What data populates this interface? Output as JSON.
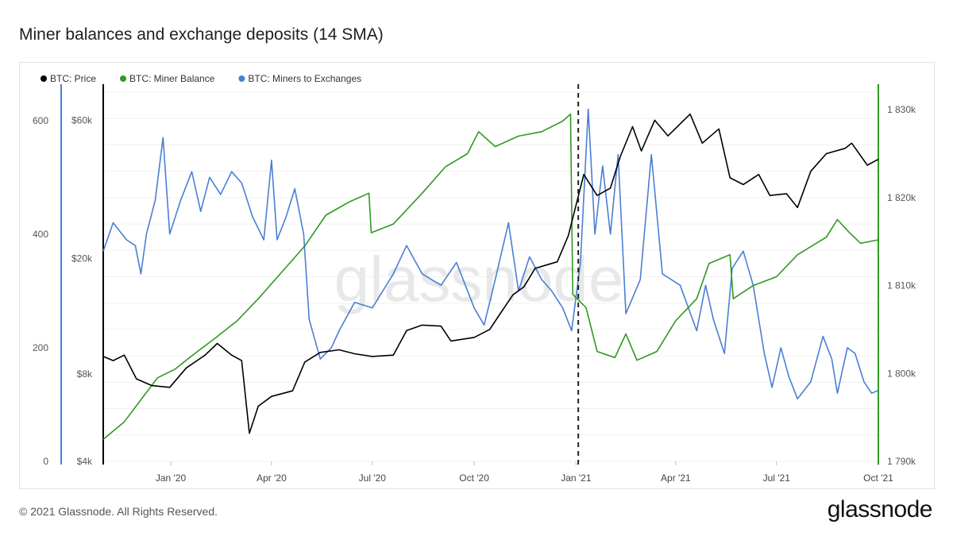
{
  "page": {
    "title": "Miner balances and exchange deposits (14 SMA)",
    "footer": "© 2021 Glassnode. All Rights Reserved.",
    "logo_text": "glassnode",
    "watermark": "glassnode"
  },
  "chart_data": {
    "type": "line",
    "title": "Miner balances and exchange deposits (14 SMA)",
    "grid": true,
    "legend_position": "top-left",
    "x_range": [
      "2019-11-01",
      "2021-10-01"
    ],
    "x_ticks": [
      "Jan '20",
      "Apr '20",
      "Jul '20",
      "Oct '20",
      "Jan '21",
      "Apr '21",
      "Jul '21",
      "Oct '21"
    ],
    "axes": {
      "left_outer": {
        "series": "BTC: Miners to Exchanges",
        "range": [
          0,
          650
        ],
        "ticks": [
          "0",
          "200",
          "400",
          "600"
        ],
        "tick_values": [
          0,
          200,
          400,
          600
        ],
        "color": "#4a7fd4"
      },
      "left_inner": {
        "series": "BTC: Price",
        "scale": "log",
        "range": [
          4000,
          75000
        ],
        "ticks": [
          "$4k",
          "$8k",
          "$20k",
          "$60k"
        ],
        "tick_values": [
          4000,
          8000,
          20000,
          60000
        ],
        "color": "#000000"
      },
      "right": {
        "series": "BTC: Miner Balance",
        "range": [
          1790000,
          1832000
        ],
        "ticks": [
          "1 790k",
          "1 800k",
          "1 810k",
          "1 820k",
          "1 830k"
        ],
        "tick_values": [
          1790000,
          1800000,
          1810000,
          1820000,
          1830000
        ],
        "color": "#2e9a1e"
      }
    },
    "annotations": [
      {
        "type": "vertical-dashed-line",
        "x": "2021-01-03"
      }
    ],
    "series": [
      {
        "name": "BTC: Price",
        "color": "#000000",
        "axis": "left_inner",
        "points": [
          [
            "2019-11-01",
            9200
          ],
          [
            "2019-11-10",
            8900
          ],
          [
            "2019-11-20",
            9300
          ],
          [
            "2019-12-01",
            7700
          ],
          [
            "2019-12-15",
            7300
          ],
          [
            "2019-12-31",
            7200
          ],
          [
            "2020-01-15",
            8400
          ],
          [
            "2020-02-01",
            9300
          ],
          [
            "2020-02-12",
            10200
          ],
          [
            "2020-02-25",
            9300
          ],
          [
            "2020-03-05",
            8900
          ],
          [
            "2020-03-12",
            5000
          ],
          [
            "2020-03-20",
            6200
          ],
          [
            "2020-04-01",
            6700
          ],
          [
            "2020-04-20",
            7000
          ],
          [
            "2020-05-01",
            8800
          ],
          [
            "2020-05-15",
            9500
          ],
          [
            "2020-06-01",
            9700
          ],
          [
            "2020-06-15",
            9400
          ],
          [
            "2020-07-01",
            9200
          ],
          [
            "2020-07-20",
            9300
          ],
          [
            "2020-08-01",
            11300
          ],
          [
            "2020-08-15",
            11800
          ],
          [
            "2020-09-01",
            11700
          ],
          [
            "2020-09-10",
            10400
          ],
          [
            "2020-10-01",
            10700
          ],
          [
            "2020-10-15",
            11400
          ],
          [
            "2020-10-25",
            13000
          ],
          [
            "2020-11-05",
            15000
          ],
          [
            "2020-11-15",
            16000
          ],
          [
            "2020-11-25",
            18500
          ],
          [
            "2020-12-05",
            19000
          ],
          [
            "2020-12-15",
            19500
          ],
          [
            "2020-12-25",
            24000
          ],
          [
            "2021-01-08",
            39000
          ],
          [
            "2021-01-20",
            33000
          ],
          [
            "2021-02-01",
            35000
          ],
          [
            "2021-02-10",
            45000
          ],
          [
            "2021-02-21",
            57000
          ],
          [
            "2021-03-01",
            47000
          ],
          [
            "2021-03-13",
            60000
          ],
          [
            "2021-03-25",
            53000
          ],
          [
            "2021-04-14",
            63000
          ],
          [
            "2021-04-25",
            50000
          ],
          [
            "2021-05-10",
            56000
          ],
          [
            "2021-05-20",
            38000
          ],
          [
            "2021-06-01",
            36000
          ],
          [
            "2021-06-15",
            39000
          ],
          [
            "2021-06-25",
            33000
          ],
          [
            "2021-07-10",
            33500
          ],
          [
            "2021-07-20",
            30000
          ],
          [
            "2021-08-01",
            40000
          ],
          [
            "2021-08-15",
            46000
          ],
          [
            "2021-09-01",
            48000
          ],
          [
            "2021-09-07",
            50000
          ],
          [
            "2021-09-21",
            42000
          ],
          [
            "2021-10-01",
            44000
          ]
        ]
      },
      {
        "name": "BTC: Miner Balance",
        "color": "#2e9a1e",
        "axis": "right",
        "points": [
          [
            "2019-11-01",
            1792500
          ],
          [
            "2019-11-20",
            1794500
          ],
          [
            "2019-12-05",
            1797000
          ],
          [
            "2019-12-20",
            1799500
          ],
          [
            "2020-01-05",
            1800500
          ],
          [
            "2020-01-20",
            1802000
          ],
          [
            "2020-02-10",
            1804000
          ],
          [
            "2020-03-01",
            1806000
          ],
          [
            "2020-03-20",
            1808500
          ],
          [
            "2020-04-10",
            1811500
          ],
          [
            "2020-05-01",
            1814500
          ],
          [
            "2020-05-20",
            1818000
          ],
          [
            "2020-06-10",
            1819500
          ],
          [
            "2020-06-28",
            1820500
          ],
          [
            "2020-06-30",
            1816000
          ],
          [
            "2020-07-20",
            1817000
          ],
          [
            "2020-08-15",
            1820500
          ],
          [
            "2020-09-05",
            1823500
          ],
          [
            "2020-09-25",
            1825000
          ],
          [
            "2020-10-05",
            1827500
          ],
          [
            "2020-10-20",
            1825800
          ],
          [
            "2020-11-10",
            1827000
          ],
          [
            "2020-12-01",
            1827500
          ],
          [
            "2020-12-20",
            1828700
          ],
          [
            "2020-12-27",
            1829500
          ],
          [
            "2020-12-29",
            1809000
          ],
          [
            "2021-01-10",
            1807500
          ],
          [
            "2021-01-20",
            1802500
          ],
          [
            "2021-02-05",
            1801800
          ],
          [
            "2021-02-15",
            1804500
          ],
          [
            "2021-02-25",
            1801500
          ],
          [
            "2021-03-15",
            1802500
          ],
          [
            "2021-04-01",
            1806000
          ],
          [
            "2021-04-20",
            1808500
          ],
          [
            "2021-05-01",
            1812500
          ],
          [
            "2021-05-20",
            1813500
          ],
          [
            "2021-05-23",
            1808500
          ],
          [
            "2021-06-10",
            1810000
          ],
          [
            "2021-07-01",
            1811000
          ],
          [
            "2021-07-20",
            1813500
          ],
          [
            "2021-08-15",
            1815500
          ],
          [
            "2021-08-25",
            1817500
          ],
          [
            "2021-09-05",
            1816000
          ],
          [
            "2021-09-15",
            1814800
          ],
          [
            "2021-10-01",
            1815200
          ]
        ]
      },
      {
        "name": "BTC: Miners to Exchanges",
        "color": "#4a7fd4",
        "axis": "left_outer",
        "points": [
          [
            "2019-11-01",
            370
          ],
          [
            "2019-11-10",
            420
          ],
          [
            "2019-11-22",
            390
          ],
          [
            "2019-11-30",
            380
          ],
          [
            "2019-12-05",
            330
          ],
          [
            "2019-12-10",
            400
          ],
          [
            "2019-12-18",
            460
          ],
          [
            "2019-12-25",
            570
          ],
          [
            "2019-12-31",
            400
          ],
          [
            "2020-01-10",
            460
          ],
          [
            "2020-01-20",
            510
          ],
          [
            "2020-01-28",
            440
          ],
          [
            "2020-02-05",
            500
          ],
          [
            "2020-02-15",
            470
          ],
          [
            "2020-02-25",
            510
          ],
          [
            "2020-03-05",
            490
          ],
          [
            "2020-03-15",
            430
          ],
          [
            "2020-03-25",
            390
          ],
          [
            "2020-04-01",
            530
          ],
          [
            "2020-04-06",
            390
          ],
          [
            "2020-04-14",
            430
          ],
          [
            "2020-04-22",
            480
          ],
          [
            "2020-04-30",
            400
          ],
          [
            "2020-05-05",
            250
          ],
          [
            "2020-05-15",
            180
          ],
          [
            "2020-05-25",
            200
          ],
          [
            "2020-06-01",
            230
          ],
          [
            "2020-06-15",
            280
          ],
          [
            "2020-07-01",
            270
          ],
          [
            "2020-07-20",
            330
          ],
          [
            "2020-08-01",
            380
          ],
          [
            "2020-08-15",
            330
          ],
          [
            "2020-09-01",
            310
          ],
          [
            "2020-09-15",
            350
          ],
          [
            "2020-10-01",
            270
          ],
          [
            "2020-10-10",
            240
          ],
          [
            "2020-10-20",
            320
          ],
          [
            "2020-11-01",
            420
          ],
          [
            "2020-11-10",
            300
          ],
          [
            "2020-11-20",
            360
          ],
          [
            "2020-12-01",
            320
          ],
          [
            "2020-12-10",
            300
          ],
          [
            "2020-12-20",
            270
          ],
          [
            "2020-12-28",
            230
          ],
          [
            "2021-01-05",
            350
          ],
          [
            "2021-01-12",
            620
          ],
          [
            "2021-01-18",
            400
          ],
          [
            "2021-01-25",
            520
          ],
          [
            "2021-02-01",
            400
          ],
          [
            "2021-02-08",
            540
          ],
          [
            "2021-02-15",
            260
          ],
          [
            "2021-02-28",
            320
          ],
          [
            "2021-03-10",
            540
          ],
          [
            "2021-03-20",
            330
          ],
          [
            "2021-04-05",
            310
          ],
          [
            "2021-04-20",
            230
          ],
          [
            "2021-04-28",
            310
          ],
          [
            "2021-05-05",
            250
          ],
          [
            "2021-05-15",
            190
          ],
          [
            "2021-05-22",
            340
          ],
          [
            "2021-06-01",
            370
          ],
          [
            "2021-06-10",
            310
          ],
          [
            "2021-06-20",
            190
          ],
          [
            "2021-06-27",
            130
          ],
          [
            "2021-07-05",
            200
          ],
          [
            "2021-07-12",
            150
          ],
          [
            "2021-07-20",
            110
          ],
          [
            "2021-08-01",
            140
          ],
          [
            "2021-08-12",
            220
          ],
          [
            "2021-08-20",
            180
          ],
          [
            "2021-08-25",
            120
          ],
          [
            "2021-09-03",
            200
          ],
          [
            "2021-09-10",
            190
          ],
          [
            "2021-09-18",
            140
          ],
          [
            "2021-09-25",
            120
          ],
          [
            "2021-10-01",
            125
          ]
        ]
      }
    ]
  }
}
